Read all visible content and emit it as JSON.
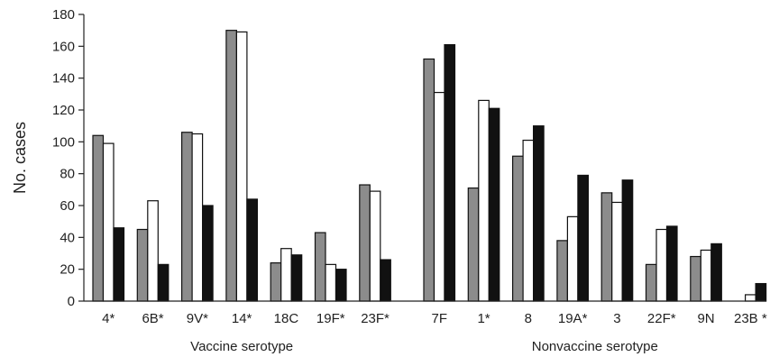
{
  "chart_data": {
    "type": "bar",
    "title": "",
    "ylabel": "No. cases",
    "ylim": [
      0,
      180
    ],
    "yticks": [
      0,
      20,
      40,
      60,
      80,
      100,
      120,
      140,
      160,
      180
    ],
    "grid": false,
    "legend": "none",
    "series_colors": [
      "#8c8c8c",
      "#ffffff",
      "#111111"
    ],
    "groups": [
      {
        "label": "Vaccine serotype",
        "categories": [
          "4*",
          "6B*",
          "9V*",
          "14*",
          "18C",
          "19F*",
          "23F*"
        ],
        "series": [
          {
            "values": [
              104,
              45,
              106,
              170,
              24,
              43,
              73
            ]
          },
          {
            "values": [
              99,
              63,
              105,
              169,
              33,
              23,
              69
            ]
          },
          {
            "values": [
              46,
              23,
              60,
              64,
              29,
              20,
              26
            ]
          }
        ]
      },
      {
        "label": "Nonvaccine serotype",
        "categories": [
          "7F",
          "1*",
          "8",
          "19A*",
          "3",
          "22F*",
          "9N",
          "23B *"
        ],
        "series": [
          {
            "values": [
              152,
              71,
              91,
              38,
              68,
              23,
              28,
              0
            ]
          },
          {
            "values": [
              131,
              126,
              101,
              53,
              62,
              45,
              32,
              4
            ]
          },
          {
            "values": [
              161,
              121,
              110,
              79,
              76,
              47,
              36,
              11
            ]
          }
        ]
      }
    ]
  }
}
